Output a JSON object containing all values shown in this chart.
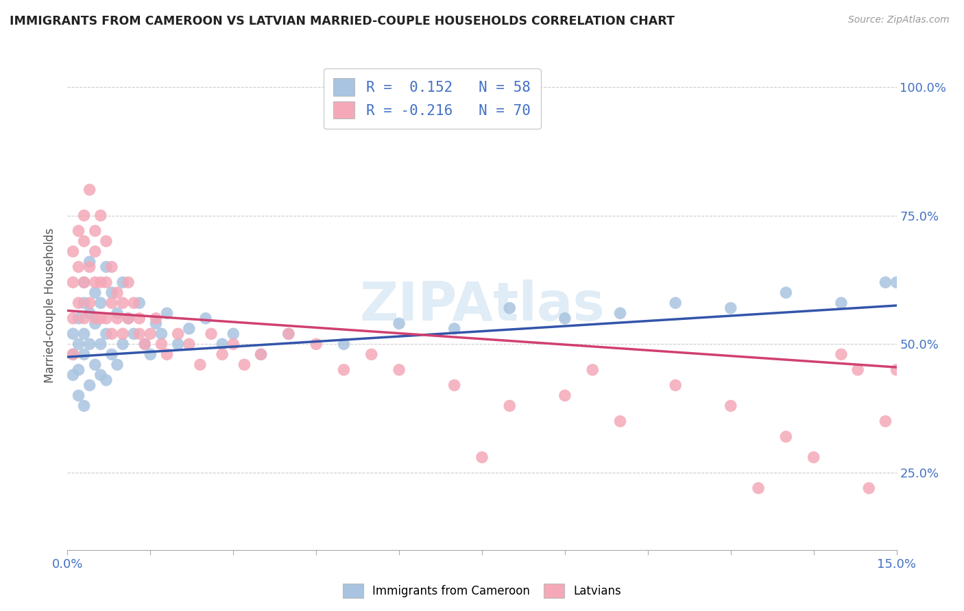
{
  "title": "IMMIGRANTS FROM CAMEROON VS LATVIAN MARRIED-COUPLE HOUSEHOLDS CORRELATION CHART",
  "source_text": "Source: ZipAtlas.com",
  "ylabel": "Married-couple Households",
  "xlim": [
    0.0,
    0.15
  ],
  "ylim": [
    0.1,
    1.05
  ],
  "blue_color": "#a8c4e0",
  "pink_color": "#f4a8b8",
  "blue_line_color": "#3355aa",
  "pink_line_color": "#d04070",
  "legend_r1": "R =  0.152   N = 58",
  "legend_r2": "R = -0.216   N = 70",
  "blue_trend_x0": 0.0,
  "blue_trend_y0": 0.475,
  "blue_trend_x1": 0.15,
  "blue_trend_y1": 0.575,
  "pink_trend_x0": 0.0,
  "pink_trend_y0": 0.565,
  "pink_trend_x1": 0.15,
  "pink_trend_y1": 0.455,
  "blue_scatter_x": [
    0.001,
    0.001,
    0.001,
    0.002,
    0.002,
    0.002,
    0.002,
    0.003,
    0.003,
    0.003,
    0.003,
    0.003,
    0.004,
    0.004,
    0.004,
    0.004,
    0.005,
    0.005,
    0.005,
    0.006,
    0.006,
    0.006,
    0.007,
    0.007,
    0.007,
    0.008,
    0.008,
    0.009,
    0.009,
    0.01,
    0.01,
    0.011,
    0.012,
    0.013,
    0.014,
    0.015,
    0.016,
    0.017,
    0.018,
    0.02,
    0.022,
    0.025,
    0.028,
    0.03,
    0.035,
    0.04,
    0.05,
    0.06,
    0.07,
    0.08,
    0.09,
    0.1,
    0.11,
    0.12,
    0.13,
    0.14,
    0.148,
    0.15
  ],
  "blue_scatter_y": [
    0.48,
    0.52,
    0.44,
    0.5,
    0.45,
    0.55,
    0.4,
    0.58,
    0.48,
    0.38,
    0.62,
    0.52,
    0.56,
    0.42,
    0.66,
    0.5,
    0.54,
    0.46,
    0.6,
    0.58,
    0.44,
    0.5,
    0.65,
    0.52,
    0.43,
    0.6,
    0.48,
    0.56,
    0.46,
    0.62,
    0.5,
    0.55,
    0.52,
    0.58,
    0.5,
    0.48,
    0.54,
    0.52,
    0.56,
    0.5,
    0.53,
    0.55,
    0.5,
    0.52,
    0.48,
    0.52,
    0.5,
    0.54,
    0.53,
    0.57,
    0.55,
    0.56,
    0.58,
    0.57,
    0.6,
    0.58,
    0.62,
    0.62
  ],
  "pink_scatter_x": [
    0.001,
    0.001,
    0.001,
    0.001,
    0.002,
    0.002,
    0.002,
    0.003,
    0.003,
    0.003,
    0.003,
    0.004,
    0.004,
    0.004,
    0.005,
    0.005,
    0.005,
    0.005,
    0.006,
    0.006,
    0.006,
    0.007,
    0.007,
    0.007,
    0.008,
    0.008,
    0.008,
    0.009,
    0.009,
    0.01,
    0.01,
    0.011,
    0.011,
    0.012,
    0.013,
    0.013,
    0.014,
    0.015,
    0.016,
    0.017,
    0.018,
    0.02,
    0.022,
    0.024,
    0.026,
    0.028,
    0.03,
    0.032,
    0.035,
    0.04,
    0.045,
    0.05,
    0.055,
    0.06,
    0.07,
    0.08,
    0.09,
    0.1,
    0.11,
    0.12,
    0.125,
    0.13,
    0.135,
    0.14,
    0.143,
    0.145,
    0.148,
    0.15,
    0.095,
    0.075
  ],
  "pink_scatter_y": [
    0.55,
    0.62,
    0.48,
    0.68,
    0.72,
    0.58,
    0.65,
    0.75,
    0.62,
    0.55,
    0.7,
    0.8,
    0.65,
    0.58,
    0.72,
    0.62,
    0.55,
    0.68,
    0.75,
    0.62,
    0.55,
    0.7,
    0.62,
    0.55,
    0.65,
    0.58,
    0.52,
    0.6,
    0.55,
    0.58,
    0.52,
    0.62,
    0.55,
    0.58,
    0.52,
    0.55,
    0.5,
    0.52,
    0.55,
    0.5,
    0.48,
    0.52,
    0.5,
    0.46,
    0.52,
    0.48,
    0.5,
    0.46,
    0.48,
    0.52,
    0.5,
    0.45,
    0.48,
    0.45,
    0.42,
    0.38,
    0.4,
    0.35,
    0.42,
    0.38,
    0.22,
    0.32,
    0.28,
    0.48,
    0.45,
    0.22,
    0.35,
    0.45,
    0.45,
    0.28
  ]
}
